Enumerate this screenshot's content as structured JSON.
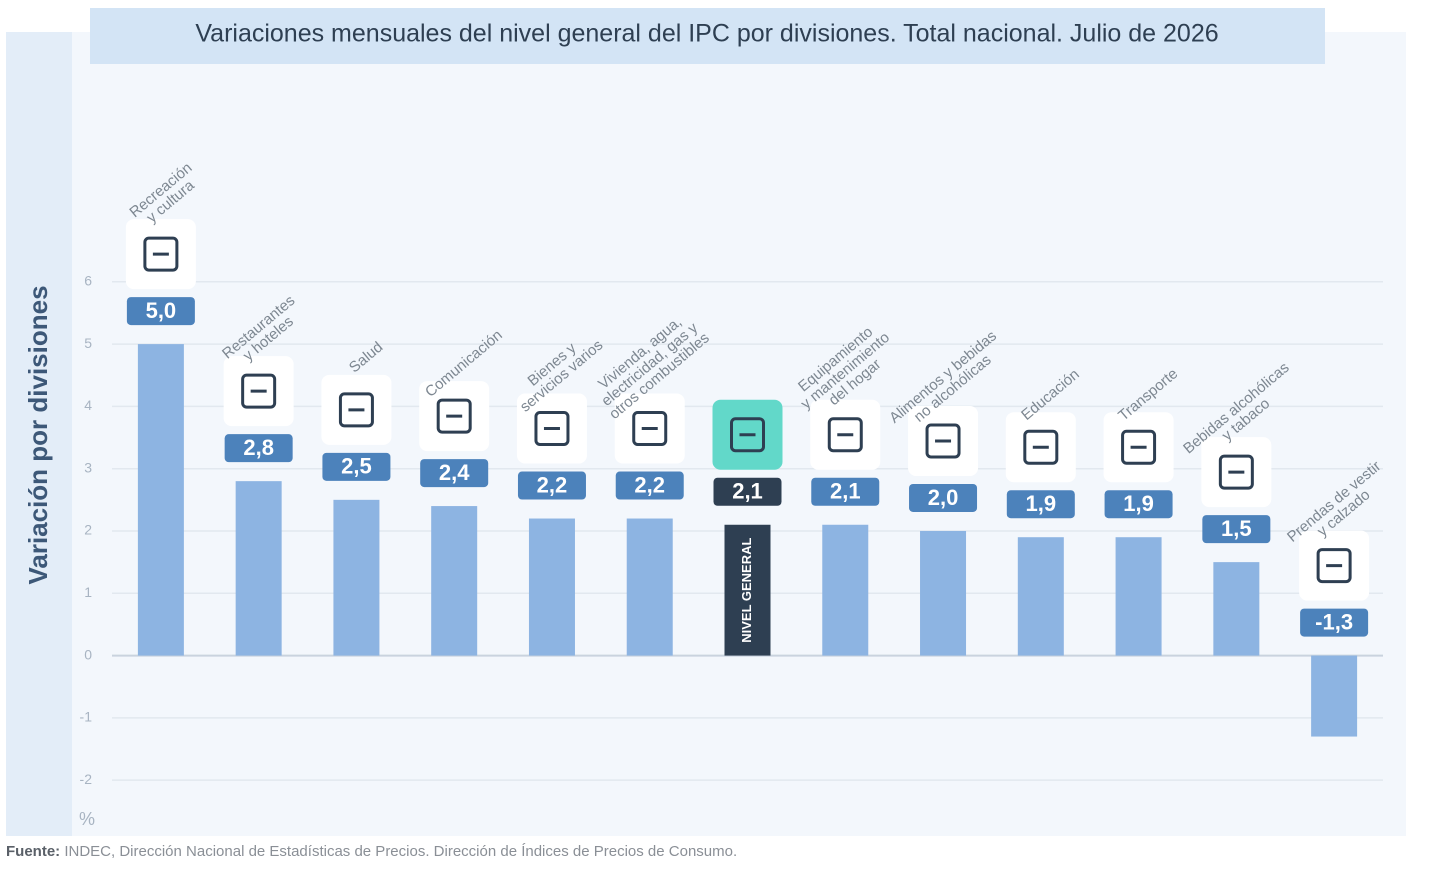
{
  "chart_data": {
    "type": "bar",
    "title": "Variaciones mensuales del nivel general del IPC por divisiones. Total nacional. Julio de 2026",
    "y_label": "Variación por divisiones",
    "y_unit": "%",
    "categories": [
      [
        "Recreación",
        "y cultura"
      ],
      [
        "Restaurantes",
        "y hoteles"
      ],
      [
        "Salud"
      ],
      [
        "Comunicación"
      ],
      [
        "Bienes y",
        "servicios varios"
      ],
      [
        "Vivienda, agua,",
        "electricidad, gas y",
        "otros combustibles"
      ],
      [
        "NIVEL GENERAL"
      ],
      [
        "Equipamiento",
        "y mantenimiento",
        "del hogar"
      ],
      [
        "Alimentos y bebidas",
        "no alcohólicas"
      ],
      [
        "Educación"
      ],
      [
        "Transporte"
      ],
      [
        "Bebidas alcohólicas",
        "y tabaco"
      ],
      [
        "Prendas de vestir",
        "y calzado"
      ]
    ],
    "values": [
      5.0,
      2.8,
      2.5,
      2.4,
      2.2,
      2.2,
      2.1,
      2.1,
      2.0,
      1.9,
      1.9,
      1.5,
      -1.3
    ],
    "value_labels": [
      "5,0",
      "2,8",
      "2,5",
      "2,4",
      "2,2",
      "2,2",
      "2,1",
      "2,1",
      "2,0",
      "1,9",
      "1,9",
      "1,5",
      "-1,3"
    ],
    "colors": [
      "#8db4e2",
      "#8db4e2",
      "#8db4e2",
      "#8db4e2",
      "#8db4e2",
      "#8db4e2",
      "#2e3f52",
      "#8db4e2",
      "#8db4e2",
      "#8db4e2",
      "#8db4e2",
      "#8db4e2",
      "#8db4e2"
    ],
    "ylim": [
      -2.8,
      9.4
    ],
    "yticks": [
      -2,
      -1,
      0,
      1,
      2,
      3,
      4,
      5,
      6
    ],
    "grid": true
  },
  "source_label": "Fuente:",
  "source_text": "INDEC, Dirección Nacional de Estadísticas de Precios. Dirección de Índices de Precios de Consumo."
}
